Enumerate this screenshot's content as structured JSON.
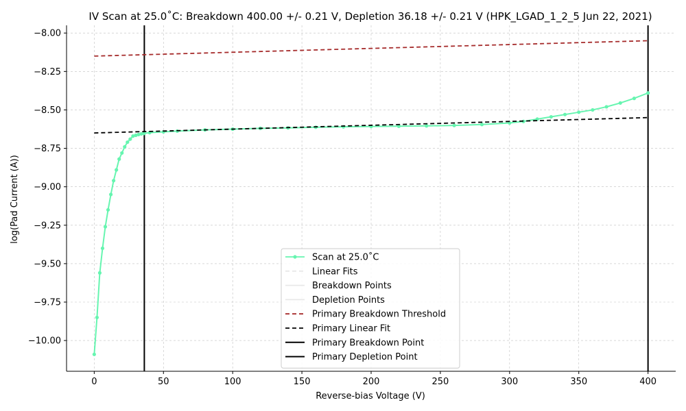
{
  "chart_data": {
    "type": "line",
    "title": "IV Scan at 25.0˚C: Breakdown 400.00 +/- 0.21 V, Depletion 36.18 +/- 0.21 V (HPK_LGAD_1_2_5 Jun 22, 2021)",
    "xlabel": "Reverse-bias Voltage (V)",
    "ylabel": "log(Pad Current (A))",
    "xlim": [
      -20,
      420
    ],
    "ylim": [
      -10.2,
      -7.95
    ],
    "xticks": [
      0,
      50,
      100,
      150,
      200,
      250,
      300,
      350,
      400
    ],
    "yticks": [
      -8.0,
      -8.25,
      -8.5,
      -8.75,
      -9.0,
      -9.25,
      -9.5,
      -9.75,
      -10.0
    ],
    "xtick_labels": [
      "0",
      "50",
      "100",
      "150",
      "200",
      "250",
      "300",
      "350",
      "400"
    ],
    "ytick_labels": [
      "−8.00",
      "−8.25",
      "−8.50",
      "−8.75",
      "−9.00",
      "−9.25",
      "−9.50",
      "−9.75",
      "−10.00"
    ],
    "grid": true,
    "legend_position": "lower-center",
    "series": [
      {
        "name": "Scan at 25.0˚C",
        "color": "#66f5b0",
        "marker": "circle",
        "x": [
          0,
          2,
          4,
          6,
          8,
          10,
          12,
          14,
          16,
          18,
          20,
          22,
          24,
          26,
          28,
          30,
          32,
          34,
          36,
          40,
          50,
          60,
          80,
          100,
          120,
          140,
          160,
          180,
          200,
          220,
          240,
          260,
          280,
          300,
          310,
          320,
          330,
          340,
          350,
          360,
          370,
          380,
          390,
          400
        ],
        "y": [
          -10.09,
          -9.85,
          -9.56,
          -9.4,
          -9.26,
          -9.15,
          -9.05,
          -8.96,
          -8.89,
          -8.82,
          -8.78,
          -8.74,
          -8.71,
          -8.69,
          -8.67,
          -8.665,
          -8.66,
          -8.656,
          -8.653,
          -8.648,
          -8.643,
          -8.638,
          -8.63,
          -8.625,
          -8.62,
          -8.617,
          -8.613,
          -8.61,
          -8.608,
          -8.606,
          -8.604,
          -8.601,
          -8.595,
          -8.585,
          -8.575,
          -8.56,
          -8.545,
          -8.53,
          -8.515,
          -8.5,
          -8.48,
          -8.455,
          -8.425,
          -8.39
        ]
      },
      {
        "name": "Linear Fits",
        "color": "#e8e8e8",
        "style": "dashed",
        "hidden": true
      },
      {
        "name": "Breakdown Points",
        "color": "#e8e8e8",
        "style": "solid",
        "hidden": true
      },
      {
        "name": "Depletion Points",
        "color": "#e8e8e8",
        "style": "solid",
        "hidden": true
      },
      {
        "name": "Primary Breakdown Threshold",
        "color": "#a52a2a",
        "style": "dashed",
        "x": [
          0,
          400
        ],
        "y": [
          -8.15,
          -8.05
        ]
      },
      {
        "name": "Primary Linear Fit",
        "color": "#000000",
        "style": "dashed",
        "x": [
          0,
          400
        ],
        "y": [
          -8.65,
          -8.55
        ]
      },
      {
        "name": "Primary Breakdown Point",
        "color": "#000000",
        "style": "solid",
        "vline": 400
      },
      {
        "name": "Primary Depletion Point",
        "color": "#000000",
        "style": "solid",
        "vline": 36.18
      }
    ]
  }
}
